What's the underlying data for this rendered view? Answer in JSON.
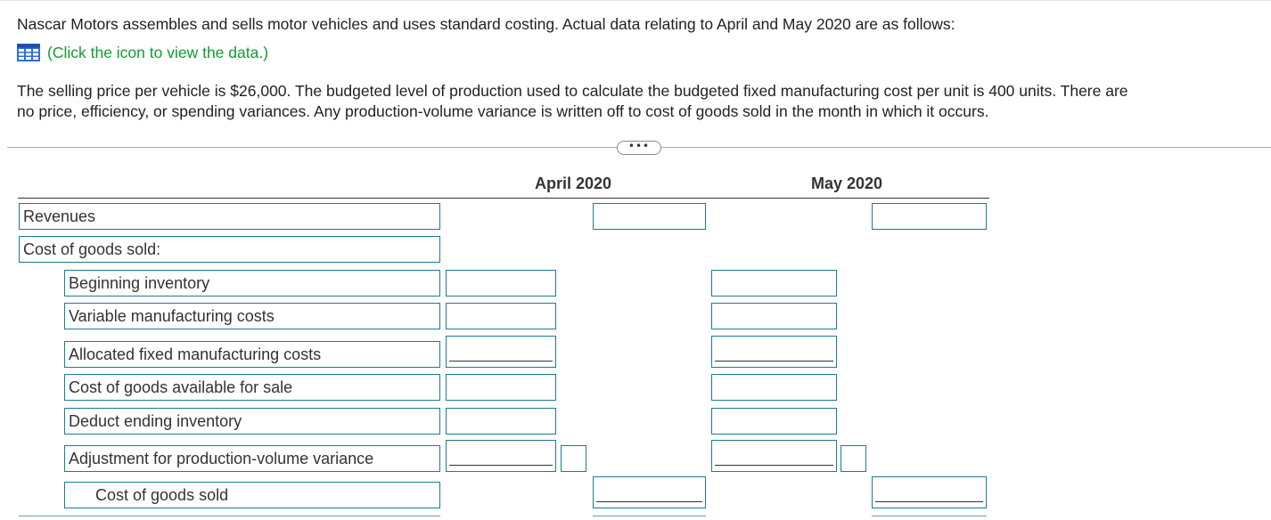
{
  "intro": "Nascar Motors assembles and sells motor vehicles and uses standard costing. Actual data relating to April and May 2020 are as follows:",
  "data_link": {
    "text": "(Click the icon to view the data.)",
    "icon": "table-grid-icon"
  },
  "selling_line1": "The selling price per vehicle is $26,000. The budgeted level of production used to calculate the budgeted fixed manufacturing cost per unit is 400 units. There are",
  "selling_line2": "no price, efficiency, or spending variances. Any production-volume variance is written off to cost of goods sold in the month in which it occurs.",
  "more_button": "•••",
  "columns": {
    "april": "April 2020",
    "may": "May 2020"
  },
  "rows": {
    "revenues": "Revenues",
    "cogs_header": "Cost of goods sold:",
    "beginning_inventory": "Beginning inventory",
    "variable_mfg": "Variable manufacturing costs",
    "allocated_fixed": "Allocated fixed manufacturing costs",
    "cogs_available": "Cost of goods available for sale",
    "deduct_ending": "Deduct ending inventory",
    "adjustment_pvv": "Adjustment for production-volume variance",
    "cogs_total": "Cost of goods sold"
  },
  "colors": {
    "border": "#1d7a94",
    "link": "#139a33",
    "icon": "#2f6fd6"
  }
}
